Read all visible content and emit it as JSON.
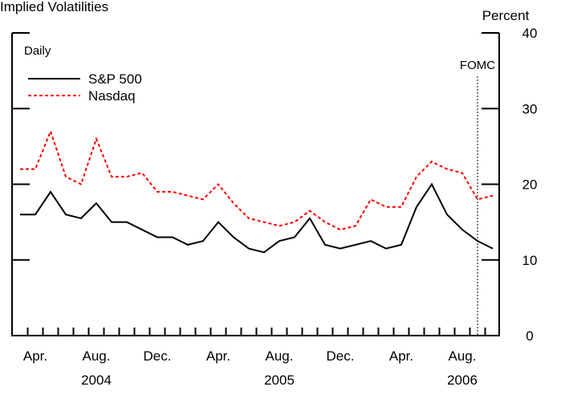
{
  "chart_data": {
    "type": "line",
    "title": "Implied Volatilities",
    "subtitle": "Daily",
    "y_unit": "Percent",
    "categories": [
      null,
      "Apr.",
      null,
      null,
      null,
      "Aug.",
      null,
      null,
      null,
      "Dec.",
      null,
      null,
      null,
      "Apr.",
      null,
      null,
      null,
      "Aug.",
      null,
      null,
      null,
      "Dec.",
      null,
      null,
      null,
      "Apr.",
      null,
      null,
      null,
      "Aug.",
      null,
      null
    ],
    "years": [
      {
        "label": "2004",
        "at": 5
      },
      {
        "label": "2005",
        "at": 17
      },
      {
        "label": "2006",
        "at": 29
      }
    ],
    "series": [
      {
        "name": "S&P 500",
        "color": "#000000",
        "dash": false,
        "values": [
          16,
          16,
          19,
          16,
          15.5,
          17.5,
          15,
          15,
          14,
          13,
          13,
          12,
          12.5,
          15,
          13,
          11.5,
          11,
          12.5,
          13,
          15.5,
          12,
          11.5,
          12,
          12.5,
          11.5,
          12,
          17,
          20,
          16,
          14,
          12.5,
          11.5
        ]
      },
      {
        "name": "Nasdaq",
        "color": "#ff0000",
        "dash": true,
        "values": [
          22,
          22,
          27,
          21,
          20,
          26,
          21,
          21,
          21.5,
          19,
          19,
          18.5,
          18,
          20,
          17.5,
          15.5,
          15,
          14.5,
          15,
          16.5,
          15,
          14,
          14.5,
          18,
          17,
          17,
          21,
          23,
          22,
          21.5,
          18,
          18.5
        ]
      }
    ],
    "annotations": [
      {
        "text": "FOMC",
        "at": 30
      }
    ],
    "ylim": [
      0,
      40
    ],
    "yticks": [
      0,
      10,
      20,
      30,
      40
    ],
    "legend": "upper left"
  }
}
